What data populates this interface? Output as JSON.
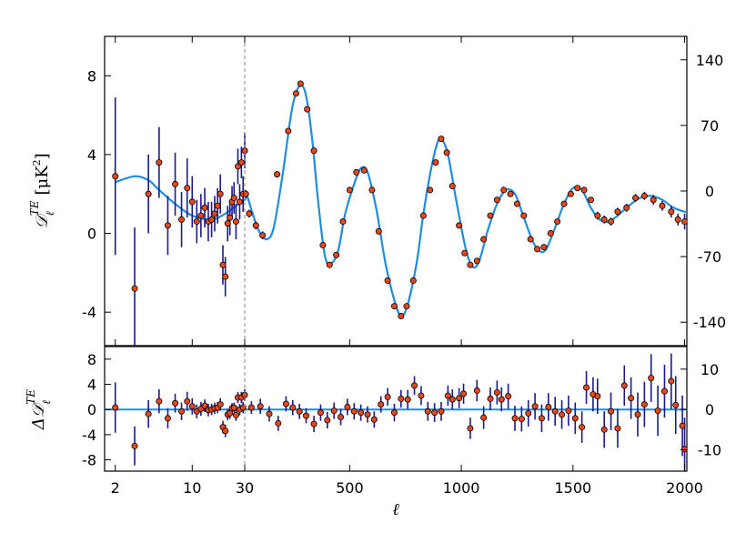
{
  "chart_data": {
    "type": "scatter",
    "xlabel": "ℓ",
    "x_split": 30,
    "x_ticks": [
      {
        "value": 2,
        "label": "2"
      },
      {
        "value": 10,
        "label": "10"
      },
      {
        "value": 30,
        "label": "30"
      },
      {
        "value": 500,
        "label": "500"
      },
      {
        "value": 1000,
        "label": "1000"
      },
      {
        "value": 1500,
        "label": "1500"
      },
      {
        "value": 2000,
        "label": "2000"
      }
    ],
    "xlim": [
      1.6,
      2010
    ],
    "top": {
      "ylabel_main": "𝒟",
      "ylabel_sub": "ℓ",
      "ylabel_sup": "TE",
      "ylabel_unit": "[μK",
      "ylabel_unit_sup": "2",
      "ylabel_unit_close": "]",
      "ylim": [
        -5.7,
        10.0
      ],
      "y_ticks": [
        {
          "value": -4,
          "label": "-4"
        },
        {
          "value": 0,
          "label": "0"
        },
        {
          "value": 4,
          "label": "4"
        },
        {
          "value": 8,
          "label": "8"
        }
      ],
      "right_ticks": [
        {
          "value": 140,
          "label": "140"
        },
        {
          "value": 70,
          "label": "70"
        },
        {
          "value": 0,
          "label": "0"
        },
        {
          "value": -70,
          "label": "-70"
        },
        {
          "value": -140,
          "label": "-140"
        }
      ],
      "right_ylim": [
        -165,
        165
      ],
      "model": [
        [
          2,
          2.6
        ],
        [
          3,
          2.9
        ],
        [
          4,
          2.7
        ],
        [
          5,
          2.2
        ],
        [
          7,
          1.5
        ],
        [
          10,
          0.9
        ],
        [
          15,
          0.7
        ],
        [
          20,
          1.0
        ],
        [
          25,
          1.4
        ],
        [
          30,
          1.7
        ],
        [
          40,
          1.9
        ],
        [
          60,
          1.2
        ],
        [
          80,
          0.5
        ],
        [
          100,
          0.0
        ],
        [
          130,
          -0.3
        ],
        [
          160,
          0.3
        ],
        [
          200,
          3.0
        ],
        [
          240,
          6.2
        ],
        [
          270,
          7.4
        ],
        [
          300,
          7.2
        ],
        [
          330,
          5.0
        ],
        [
          360,
          1.5
        ],
        [
          390,
          -1.2
        ],
        [
          420,
          -1.5
        ],
        [
          450,
          -0.8
        ],
        [
          480,
          1.0
        ],
        [
          520,
          2.5
        ],
        [
          550,
          3.3
        ],
        [
          580,
          3.1
        ],
        [
          620,
          1.2
        ],
        [
          660,
          -1.5
        ],
        [
          700,
          -3.4
        ],
        [
          730,
          -4.2
        ],
        [
          760,
          -3.6
        ],
        [
          800,
          -1.5
        ],
        [
          830,
          1.0
        ],
        [
          860,
          3.0
        ],
        [
          890,
          4.5
        ],
        [
          910,
          4.8
        ],
        [
          940,
          4.0
        ],
        [
          980,
          1.5
        ],
        [
          1020,
          -0.8
        ],
        [
          1050,
          -1.7
        ],
        [
          1080,
          -1.4
        ],
        [
          1120,
          0.2
        ],
        [
          1160,
          1.5
        ],
        [
          1200,
          2.2
        ],
        [
          1240,
          2.0
        ],
        [
          1280,
          0.8
        ],
        [
          1320,
          -0.4
        ],
        [
          1350,
          -0.9
        ],
        [
          1380,
          -0.8
        ],
        [
          1420,
          0.3
        ],
        [
          1460,
          1.5
        ],
        [
          1500,
          2.3
        ],
        [
          1540,
          2.2
        ],
        [
          1580,
          1.3
        ],
        [
          1620,
          0.7
        ],
        [
          1660,
          0.6
        ],
        [
          1700,
          0.9
        ],
        [
          1750,
          1.4
        ],
        [
          1800,
          1.8
        ],
        [
          1850,
          1.9
        ],
        [
          1900,
          1.7
        ],
        [
          1950,
          1.3
        ],
        [
          2000,
          1.1
        ],
        [
          2010,
          1.1
        ]
      ],
      "points": [
        [
          2,
          2.9,
          4.0
        ],
        [
          3,
          -2.8,
          3.1
        ],
        [
          4,
          2.0,
          2.0
        ],
        [
          5,
          3.6,
          1.8
        ],
        [
          6,
          0.4,
          1.5
        ],
        [
          7,
          2.5,
          1.6
        ],
        [
          8,
          0.7,
          1.4
        ],
        [
          9,
          2.3,
          1.5
        ],
        [
          10,
          1.6,
          1.3
        ],
        [
          11,
          0.6,
          1.1
        ],
        [
          12,
          0.9,
          1.1
        ],
        [
          13,
          1.3,
          1.0
        ],
        [
          14,
          0.6,
          1.0
        ],
        [
          15,
          0.7,
          0.9
        ],
        [
          16,
          1.0,
          0.9
        ],
        [
          17,
          1.4,
          0.9
        ],
        [
          18,
          2.0,
          1.0
        ],
        [
          19,
          -1.6,
          1.0
        ],
        [
          20,
          -2.2,
          1.0
        ],
        [
          21,
          0.5,
          0.9
        ],
        [
          22,
          0.8,
          0.9
        ],
        [
          23,
          1.6,
          0.8
        ],
        [
          24,
          1.8,
          0.8
        ],
        [
          25,
          0.6,
          0.9
        ],
        [
          26,
          3.4,
          0.9
        ],
        [
          27,
          1.6,
          0.9
        ],
        [
          28,
          3.6,
          0.8
        ],
        [
          29,
          2.0,
          0.9
        ],
        [
          30,
          4.2,
          0.9
        ],
        [
          35,
          2.0,
          0.2
        ],
        [
          50,
          1.0,
          0.2
        ],
        [
          80,
          0.4,
          0.2
        ],
        [
          110,
          -0.1,
          0.2
        ],
        [
          175,
          3.0,
          0.15
        ],
        [
          225,
          5.2,
          0.15
        ],
        [
          260,
          7.1,
          0.15
        ],
        [
          280,
          7.6,
          0.15
        ],
        [
          310,
          6.3,
          0.15
        ],
        [
          340,
          4.2,
          0.15
        ],
        [
          380,
          -0.6,
          0.15
        ],
        [
          410,
          -1.6,
          0.15
        ],
        [
          440,
          -1.1,
          0.15
        ],
        [
          470,
          0.6,
          0.15
        ],
        [
          500,
          2.2,
          0.15
        ],
        [
          530,
          3.1,
          0.15
        ],
        [
          565,
          3.2,
          0.15
        ],
        [
          600,
          2.2,
          0.15
        ],
        [
          630,
          0.1,
          0.15
        ],
        [
          670,
          -2.4,
          0.15
        ],
        [
          700,
          -3.7,
          0.15
        ],
        [
          730,
          -4.2,
          0.15
        ],
        [
          755,
          -3.7,
          0.15
        ],
        [
          785,
          -2.4,
          0.15
        ],
        [
          830,
          0.9,
          0.15
        ],
        [
          860,
          2.2,
          0.15
        ],
        [
          885,
          3.6,
          0.15
        ],
        [
          910,
          4.8,
          0.15
        ],
        [
          935,
          4.1,
          0.15
        ],
        [
          960,
          2.4,
          0.15
        ],
        [
          990,
          0.4,
          0.15
        ],
        [
          1015,
          -1.0,
          0.15
        ],
        [
          1040,
          -1.6,
          0.15
        ],
        [
          1070,
          -1.4,
          0.15
        ],
        [
          1100,
          -0.3,
          0.15
        ],
        [
          1130,
          0.9,
          0.15
        ],
        [
          1160,
          1.7,
          0.15
        ],
        [
          1190,
          2.2,
          0.15
        ],
        [
          1220,
          2.0,
          0.15
        ],
        [
          1250,
          1.5,
          0.15
        ],
        [
          1280,
          0.9,
          0.15
        ],
        [
          1310,
          -0.3,
          0.15
        ],
        [
          1340,
          -0.8,
          0.15
        ],
        [
          1370,
          -0.7,
          0.15
        ],
        [
          1400,
          0.0,
          0.15
        ],
        [
          1430,
          0.6,
          0.15
        ],
        [
          1460,
          1.5,
          0.15
        ],
        [
          1490,
          2.0,
          0.15
        ],
        [
          1520,
          2.3,
          0.15
        ],
        [
          1550,
          2.2,
          0.15
        ],
        [
          1580,
          1.7,
          0.15
        ],
        [
          1610,
          0.9,
          0.2
        ],
        [
          1640,
          0.7,
          0.2
        ],
        [
          1670,
          0.6,
          0.2
        ],
        [
          1700,
          1.1,
          0.2
        ],
        [
          1740,
          1.3,
          0.2
        ],
        [
          1780,
          1.8,
          0.2
        ],
        [
          1820,
          1.9,
          0.2
        ],
        [
          1860,
          1.7,
          0.25
        ],
        [
          1900,
          1.4,
          0.25
        ],
        [
          1940,
          1.1,
          0.3
        ],
        [
          1970,
          0.7,
          0.3
        ],
        [
          2000,
          0.6,
          0.4
        ]
      ]
    },
    "bottom": {
      "ylabel_main": "Δ𝒟",
      "ylabel_sub": "ℓ",
      "ylabel_sup": "TE",
      "ylim": [
        -9.8,
        10.0
      ],
      "y_ticks": [
        {
          "value": -8,
          "label": "-8"
        },
        {
          "value": -4,
          "label": "-4"
        },
        {
          "value": 0,
          "label": "0"
        },
        {
          "value": 4,
          "label": "4"
        },
        {
          "value": 8,
          "label": "8"
        }
      ],
      "right_ticks": [
        {
          "value": 10,
          "label": "10"
        },
        {
          "value": 0,
          "label": "0"
        },
        {
          "value": -10,
          "label": "-10"
        }
      ],
      "right_ylim": [
        -15.3,
        15.6
      ],
      "points": [
        [
          2,
          0.3,
          4.0
        ],
        [
          3,
          -5.8,
          3.1
        ],
        [
          4,
          -0.7,
          2.2
        ],
        [
          5,
          1.3,
          1.9
        ],
        [
          6,
          -1.4,
          1.6
        ],
        [
          7,
          1.0,
          1.5
        ],
        [
          8,
          -0.3,
          1.4
        ],
        [
          9,
          1.3,
          1.5
        ],
        [
          10,
          0.5,
          1.3
        ],
        [
          11,
          -0.3,
          1.1
        ],
        [
          12,
          0.1,
          1.1
        ],
        [
          13,
          0.6,
          1.0
        ],
        [
          14,
          -0.1,
          1.0
        ],
        [
          15,
          0.0,
          0.9
        ],
        [
          16,
          0.2,
          0.9
        ],
        [
          17,
          0.3,
          0.9
        ],
        [
          18,
          0.8,
          1.0
        ],
        [
          19,
          -2.8,
          1.0
        ],
        [
          20,
          -3.4,
          1.0
        ],
        [
          21,
          -0.8,
          0.9
        ],
        [
          22,
          -0.6,
          0.9
        ],
        [
          23,
          0.2,
          0.8
        ],
        [
          24,
          0.3,
          0.8
        ],
        [
          25,
          -0.9,
          0.9
        ],
        [
          26,
          1.9,
          0.9
        ],
        [
          27,
          0.0,
          0.9
        ],
        [
          28,
          1.9,
          0.9
        ],
        [
          29,
          0.3,
          0.9
        ],
        [
          30,
          2.3,
          0.9
        ],
        [
          60,
          0.3,
          1.0
        ],
        [
          100,
          0.5,
          1.2
        ],
        [
          140,
          -0.7,
          1.2
        ],
        [
          180,
          -2.2,
          1.2
        ],
        [
          215,
          0.9,
          1.2
        ],
        [
          245,
          0.3,
          1.2
        ],
        [
          275,
          -0.3,
          1.2
        ],
        [
          305,
          -1.0,
          1.2
        ],
        [
          340,
          -2.3,
          1.3
        ],
        [
          370,
          -0.5,
          1.3
        ],
        [
          400,
          -1.7,
          1.3
        ],
        [
          430,
          -0.2,
          1.3
        ],
        [
          460,
          -1.2,
          1.3
        ],
        [
          490,
          0.4,
          1.3
        ],
        [
          520,
          -0.3,
          1.3
        ],
        [
          550,
          -0.5,
          1.3
        ],
        [
          580,
          -0.8,
          1.3
        ],
        [
          610,
          -1.6,
          1.3
        ],
        [
          640,
          0.8,
          1.3
        ],
        [
          670,
          2.0,
          1.4
        ],
        [
          700,
          -0.5,
          1.4
        ],
        [
          730,
          1.7,
          1.4
        ],
        [
          760,
          1.6,
          1.5
        ],
        [
          790,
          3.8,
          1.5
        ],
        [
          820,
          2.2,
          1.5
        ],
        [
          850,
          -0.3,
          1.5
        ],
        [
          880,
          -0.5,
          1.5
        ],
        [
          910,
          -0.3,
          1.5
        ],
        [
          940,
          2.2,
          1.6
        ],
        [
          960,
          1.6,
          1.6
        ],
        [
          990,
          1.8,
          1.6
        ],
        [
          1010,
          2.5,
          1.6
        ],
        [
          1040,
          -3.0,
          1.7
        ],
        [
          1070,
          3.0,
          1.7
        ],
        [
          1100,
          -1.3,
          1.8
        ],
        [
          1130,
          1.7,
          1.8
        ],
        [
          1160,
          2.7,
          1.9
        ],
        [
          1180,
          1.6,
          1.9
        ],
        [
          1210,
          2.1,
          2.0
        ],
        [
          1240,
          -1.4,
          2.0
        ],
        [
          1270,
          -1.5,
          2.0
        ],
        [
          1300,
          -0.6,
          2.1
        ],
        [
          1330,
          0.5,
          2.1
        ],
        [
          1360,
          -1.4,
          2.2
        ],
        [
          1390,
          0.4,
          2.2
        ],
        [
          1420,
          -0.3,
          2.3
        ],
        [
          1450,
          -0.8,
          2.3
        ],
        [
          1480,
          -0.2,
          2.4
        ],
        [
          1510,
          -1.4,
          2.5
        ],
        [
          1540,
          -2.8,
          2.5
        ],
        [
          1560,
          3.5,
          2.6
        ],
        [
          1590,
          2.4,
          2.7
        ],
        [
          1610,
          2.1,
          2.8
        ],
        [
          1640,
          -3.2,
          2.9
        ],
        [
          1670,
          -0.3,
          3.0
        ],
        [
          1700,
          -3.0,
          3.1
        ],
        [
          1730,
          3.8,
          3.2
        ],
        [
          1760,
          1.8,
          3.3
        ],
        [
          1790,
          -0.8,
          3.5
        ],
        [
          1820,
          0.8,
          3.6
        ],
        [
          1850,
          5.0,
          3.8
        ],
        [
          1880,
          -0.2,
          4.0
        ],
        [
          1910,
          2.9,
          4.2
        ],
        [
          1940,
          4.5,
          4.4
        ],
        [
          1960,
          0.7,
          4.6
        ],
        [
          1990,
          -2.6,
          4.8
        ],
        [
          2000,
          -6.3,
          5.0
        ]
      ]
    },
    "colors": {
      "model_line": "#1f8ddf",
      "errorbar": "#1a1a8c",
      "marker_fill": "#e8471c",
      "marker_edge": "#000000",
      "split_line": "#888888"
    }
  }
}
